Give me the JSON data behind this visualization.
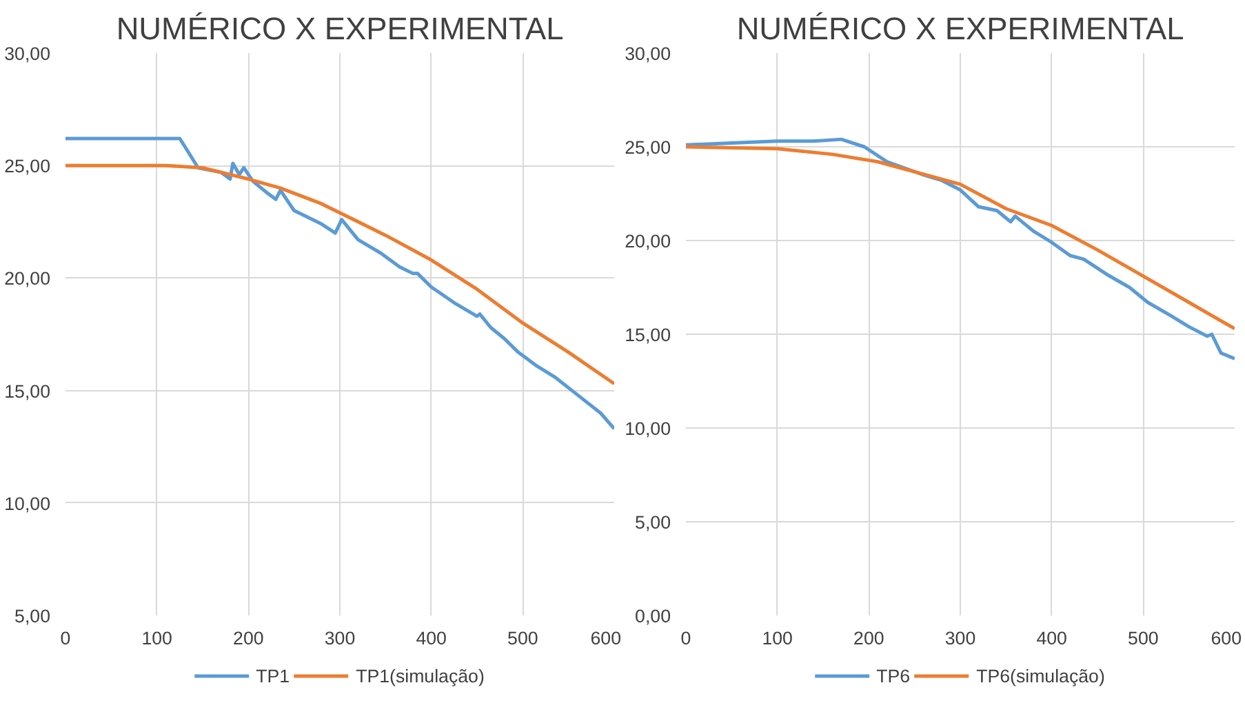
{
  "chart_data": [
    {
      "type": "line",
      "title": "NUMÉRICO X EXPERIMENTAL",
      "xlim": [
        0,
        600
      ],
      "xticks": [
        0,
        100,
        200,
        300,
        400,
        500,
        600
      ],
      "ylim": [
        5,
        30
      ],
      "yticks": [
        {
          "value": 5,
          "label": "5,00"
        },
        {
          "value": 10,
          "label": "10,00"
        },
        {
          "value": 15,
          "label": "15,00"
        },
        {
          "value": 20,
          "label": "20,00"
        },
        {
          "value": 25,
          "label": "25,00"
        },
        {
          "value": 30,
          "label": "30,00"
        }
      ],
      "grid": true,
      "legend": "bottom",
      "marker": "none",
      "line_style": "solid",
      "series": [
        {
          "name": "TP1",
          "color": "#5b9bd5",
          "x": [
            0,
            60,
            125,
            145,
            170,
            180,
            183,
            190,
            195,
            205,
            220,
            230,
            235,
            250,
            270,
            280,
            295,
            302,
            308,
            320,
            345,
            365,
            380,
            385,
            400,
            425,
            450,
            453,
            465,
            480,
            495,
            515,
            535,
            560,
            585,
            600
          ],
          "values": [
            26.2,
            26.2,
            26.2,
            24.9,
            24.7,
            24.4,
            25.1,
            24.6,
            24.9,
            24.3,
            23.8,
            23.5,
            23.9,
            23.0,
            22.6,
            22.4,
            22.0,
            22.6,
            22.3,
            21.7,
            21.1,
            20.5,
            20.2,
            20.2,
            19.6,
            18.9,
            18.3,
            18.4,
            17.8,
            17.3,
            16.7,
            16.1,
            15.6,
            14.8,
            14.0,
            13.3
          ]
        },
        {
          "name": "TP1(simulação)",
          "color": "#ed7d31",
          "x": [
            0,
            110,
            150,
            200,
            235,
            280,
            300,
            350,
            400,
            450,
            500,
            550,
            600
          ],
          "values": [
            25.0,
            25.0,
            24.9,
            24.4,
            24.0,
            23.3,
            22.9,
            21.9,
            20.8,
            19.5,
            18.0,
            16.7,
            15.3
          ]
        }
      ]
    },
    {
      "type": "line",
      "title": "NUMÉRICO X EXPERIMENTAL",
      "xlim": [
        0,
        600
      ],
      "xticks": [
        0,
        100,
        200,
        300,
        400,
        500,
        600
      ],
      "ylim": [
        0,
        30
      ],
      "yticks": [
        {
          "value": 0,
          "label": "0,00"
        },
        {
          "value": 5,
          "label": "5,00"
        },
        {
          "value": 10,
          "label": "10,00"
        },
        {
          "value": 15,
          "label": "15,00"
        },
        {
          "value": 20,
          "label": "20,00"
        },
        {
          "value": 25,
          "label": "25,00"
        },
        {
          "value": 30,
          "label": "30,00"
        }
      ],
      "grid": true,
      "legend": "bottom",
      "marker": "none",
      "line_style": "solid",
      "series": [
        {
          "name": "TP6",
          "color": "#5b9bd5",
          "x": [
            0,
            50,
            100,
            140,
            170,
            195,
            220,
            260,
            280,
            300,
            320,
            340,
            355,
            360,
            380,
            400,
            420,
            435,
            460,
            485,
            505,
            530,
            550,
            570,
            575,
            585,
            600
          ],
          "values": [
            25.1,
            25.2,
            25.3,
            25.3,
            25.4,
            25.0,
            24.2,
            23.5,
            23.2,
            22.7,
            21.8,
            21.6,
            21.0,
            21.3,
            20.5,
            19.9,
            19.2,
            19.0,
            18.2,
            17.5,
            16.7,
            16.0,
            15.4,
            14.9,
            15.0,
            14.0,
            13.7
          ]
        },
        {
          "name": "TP6(simulação)",
          "color": "#ed7d31",
          "x": [
            0,
            100,
            160,
            210,
            300,
            350,
            400,
            450,
            500,
            550,
            600
          ],
          "values": [
            25.0,
            24.9,
            24.6,
            24.2,
            23.0,
            21.7,
            20.8,
            19.5,
            18.1,
            16.7,
            15.3
          ]
        }
      ]
    }
  ]
}
